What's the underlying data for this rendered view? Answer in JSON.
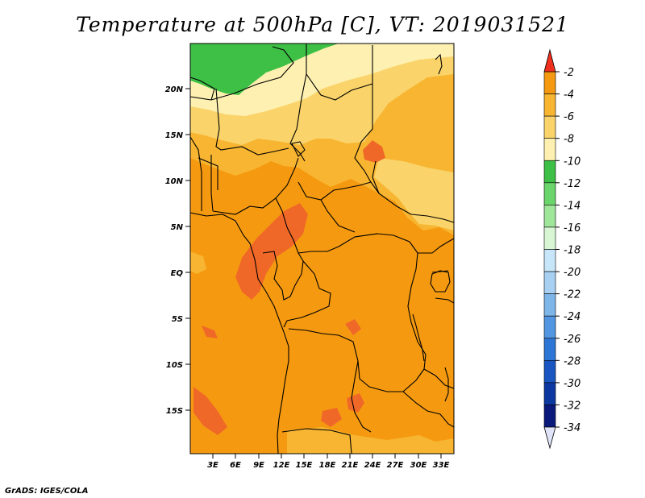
{
  "title": "Temperature at 500hPa [C], VT: 2019031521",
  "credit": "GrADS: IGES/COLA",
  "map": {
    "lat_labels": [
      "20N",
      "15N",
      "10N",
      "5N",
      "EQ",
      "5S",
      "10S",
      "15S"
    ],
    "lon_labels": [
      "3E",
      "6E",
      "9E",
      "12E",
      "15E",
      "18E",
      "21E",
      "24E",
      "27E",
      "30E",
      "33E"
    ],
    "colors": {
      "c-2_0": "#f06828",
      "c-4_-2": "#f59a10",
      "c-6_-4": "#f7b531",
      "c-8_-6": "#fad46a",
      "c-10_-8": "#fdf0b0",
      "c-12_-10": "#3dc045"
    }
  },
  "colorbar": {
    "labels": [
      "-2",
      "-4",
      "-6",
      "-8",
      "-10",
      "-12",
      "-14",
      "-16",
      "-18",
      "-20",
      "-22",
      "-24",
      "-26",
      "-28",
      "-30",
      "-32",
      "-34"
    ],
    "colors": [
      "#f06828",
      "#f59a10",
      "#f7b531",
      "#fad46a",
      "#fdf0b0",
      "#3dc045",
      "#6ad56a",
      "#a0e69a",
      "#d8f6d4",
      "#c8e6fa",
      "#a8d0f2",
      "#7eb6ea",
      "#5296e2",
      "#2e76d6",
      "#1a56c2",
      "#0c38a2",
      "#0a1a7c"
    ],
    "top_arrow_color": "#f0301e",
    "bottom_arrow_color": "#e0e4f8"
  }
}
